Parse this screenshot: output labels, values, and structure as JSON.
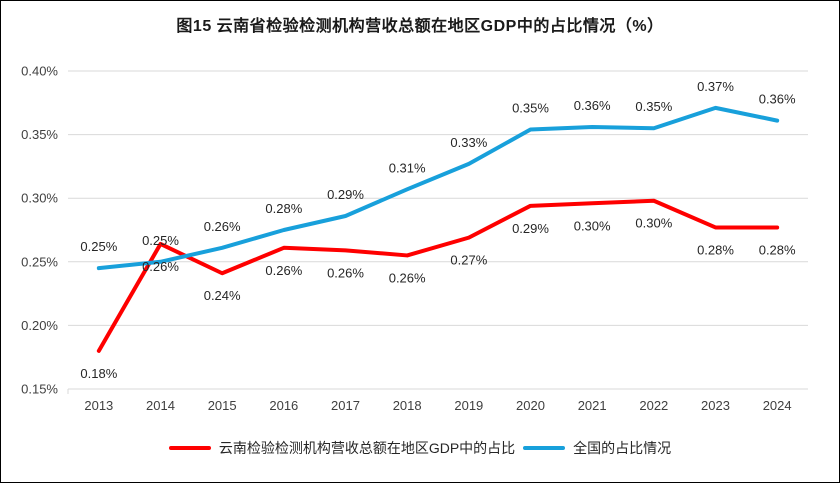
{
  "chart_data": {
    "type": "line",
    "title": "图15 云南省检验检测机构营收总额在地区GDP中的占比情况（%）",
    "categories": [
      "2013",
      "2014",
      "2015",
      "2016",
      "2017",
      "2018",
      "2019",
      "2020",
      "2021",
      "2022",
      "2023",
      "2024"
    ],
    "series": [
      {
        "name": "云南检验检测机构营收总额在地区GDP中的占比",
        "color": "#FE0000",
        "values": [
          0.18,
          0.264,
          0.241,
          0.261,
          0.259,
          0.255,
          0.269,
          0.294,
          0.296,
          0.298,
          0.277,
          0.277
        ],
        "data_labels": [
          "0.18%",
          "0.26%",
          "0.24%",
          "0.26%",
          "0.26%",
          "0.26%",
          "0.27%",
          "0.29%",
          "0.30%",
          "0.30%",
          "0.28%",
          "0.28%"
        ],
        "label_position": "below"
      },
      {
        "name": "全国的占比情况",
        "color": "#18A0DB",
        "values": [
          0.245,
          0.25,
          0.261,
          0.275,
          0.286,
          0.307,
          0.327,
          0.354,
          0.356,
          0.355,
          0.371,
          0.361
        ],
        "data_labels": [
          "0.25%",
          "0.25%",
          "0.26%",
          "0.28%",
          "0.29%",
          "0.31%",
          "0.33%",
          "0.35%",
          "0.36%",
          "0.35%",
          "0.37%",
          "0.36%"
        ],
        "label_position": "above"
      }
    ],
    "y_axis": {
      "tick_labels": [
        "0.40%",
        "0.35%",
        "0.30%",
        "0.25%",
        "0.20%",
        "0.15%"
      ],
      "tick_values": [
        0.4,
        0.35,
        0.3,
        0.25,
        0.2,
        0.15
      ],
      "min": 0.15,
      "max": 0.4
    },
    "grid": true,
    "legend_position": "bottom",
    "colors": {
      "gridline": "#D9D9D9",
      "axis_text": "#404040",
      "data_label_text": "#262626",
      "title_text": "#1a1a1a"
    }
  }
}
